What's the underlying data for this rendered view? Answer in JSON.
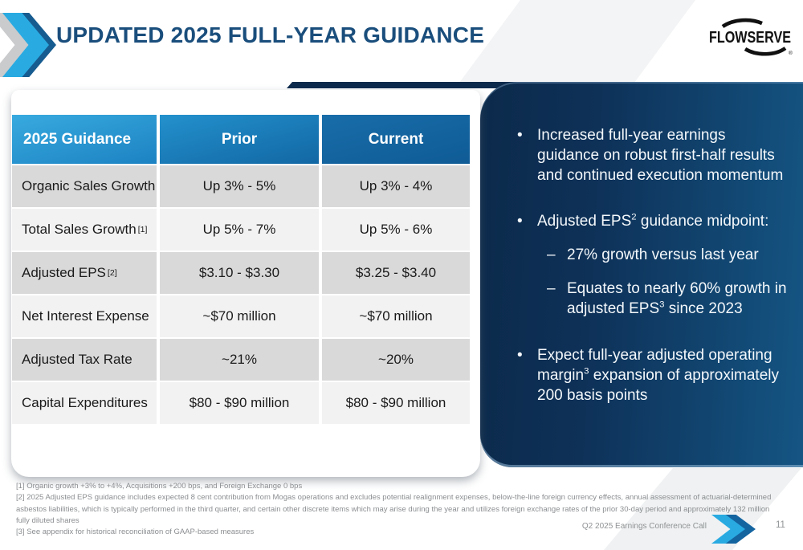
{
  "slide": {
    "title": "UPDATED 2025 FULL-YEAR GUIDANCE",
    "logo_text": "FLOWSERVE",
    "logo_reg": "®",
    "footer_label": "Q2 2025 Earnings Conference Call",
    "page_number": "11"
  },
  "table": {
    "headers": [
      "2025 Guidance",
      "Prior",
      "Current"
    ],
    "rows": [
      {
        "label": "Organic Sales Growth",
        "sup": "",
        "prior": "Up 3% - 5%",
        "current": "Up 3% - 4%"
      },
      {
        "label": "Total Sales Growth ",
        "sup": "[1]",
        "prior": "Up 5% - 7%",
        "current": "Up 5% - 6%"
      },
      {
        "label": "Adjusted EPS ",
        "sup": "[2]",
        "prior": "$3.10 - $3.30",
        "current": "$3.25 - $3.40"
      },
      {
        "label": "Net Interest Expense",
        "sup": "",
        "prior": "~$70 million",
        "current": "~$70 million"
      },
      {
        "label": "Adjusted Tax Rate",
        "sup": "",
        "prior": "~21%",
        "current": "~20%"
      },
      {
        "label": "Capital Expenditures",
        "sup": "",
        "prior": "$80 - $90 million",
        "current": "$80 - $90 million"
      }
    ]
  },
  "panel": {
    "bullet_marker": "•",
    "sub_marker": "–",
    "bullets": [
      {
        "level": 1,
        "segments": [
          {
            "t": "Increased full-year earnings guidance on robust first-half results and continued execution momentum"
          }
        ]
      },
      {
        "level": 1,
        "segments": [
          {
            "t": "Adjusted EPS"
          },
          {
            "sup": "2"
          },
          {
            "t": " guidance midpoint:"
          }
        ]
      },
      {
        "level": 2,
        "segments": [
          {
            "t": "27% growth versus last year"
          }
        ]
      },
      {
        "level": 2,
        "segments": [
          {
            "t": "Equates to nearly 60% growth in adjusted EPS"
          },
          {
            "sup": "3"
          },
          {
            "t": " since 2023"
          }
        ]
      },
      {
        "level": 1,
        "segments": [
          {
            "t": "Expect full-year adjusted operating margin"
          },
          {
            "sup": "3"
          },
          {
            "t": " expansion of approximately 200 basis points"
          }
        ]
      }
    ]
  },
  "footnotes": [
    "[1] Organic growth +3% to +4%, Acquisitions +200 bps, and Foreign Exchange 0 bps",
    "[2] 2025 Adjusted EPS guidance includes expected 8 cent contribution from Mogas operations and excludes potential realignment expenses, below-the-line foreign currency effects, annual assessment of actuarial-determined asbestos liabilities, which is typically performed in the third quarter, and certain other discrete items which may arise during the year and utilizes foreign exchange rates of the prior 30-day period and approximately 132 million fully diluted shares",
    "[3] See appendix for historical reconciliation of GAAP-based measures"
  ],
  "colors": {
    "accent_cyan": "#29ABE2",
    "title_navy": "#1A4E7C",
    "panel_navy_dark": "#0C2A4B",
    "panel_navy_light": "#155584",
    "row_gray": "#D9D9D9",
    "row_light": "#F2F2F2"
  }
}
